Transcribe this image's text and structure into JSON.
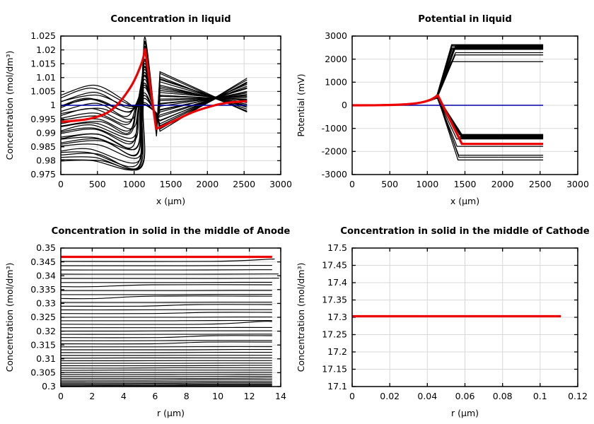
{
  "figure": {
    "background": "#ffffff",
    "colors": {
      "curve_black": "#000000",
      "highlight_red": "#ee0000",
      "reference_blue": "#0000a8",
      "grid": "#d8d8d8",
      "border": "#000000",
      "text": "#000000"
    }
  },
  "chart_data": [
    {
      "id": "concentration-liquid",
      "type": "line",
      "title": "Concentration in liquid",
      "xlabel": "x (µm)",
      "ylabel": "Concentration (mol/dm³)",
      "xlim": [
        0,
        3000
      ],
      "ylim": [
        0.975,
        1.025
      ],
      "grid": true,
      "legend": "none",
      "xticks": {
        "values": [
          0,
          500,
          1000,
          1500,
          2000,
          2500,
          3000
        ],
        "labels": [
          "0",
          "500",
          "1000",
          "1500",
          "2000",
          "2500",
          "3000"
        ]
      },
      "yticks": {
        "values": [
          0.975,
          0.98,
          0.985,
          0.99,
          0.995,
          1,
          1.005,
          1.01,
          1.015,
          1.02,
          1.025
        ],
        "labels": [
          "0.975",
          "0.98",
          "0.985",
          "0.99",
          "0.995",
          "1",
          "1.005",
          "1.01",
          "1.015",
          "1.02",
          "1.025"
        ]
      },
      "x_data_end": 2540,
      "series": {
        "black_curves": {
          "description": "liquid-phase concentration profiles at successive time steps",
          "count": 30,
          "start_range": [
            0.98,
            1.0035
          ],
          "dip": {
            "x_range": [
              840,
              1080
            ],
            "min": 0.9776
          },
          "peak": {
            "x": 1150,
            "range": [
              1.0,
              1.024
            ]
          },
          "valley": {
            "x": 1305,
            "range": [
              0.989,
              0.9975
            ]
          },
          "fan": {
            "x_start": 1352,
            "start_range": [
              0.9905,
              1.012
            ],
            "end_range": [
              0.9975,
              1.0095
            ]
          }
        },
        "red_highlight": {
          "segments": [
            [
              [
                0,
                0.994
              ],
              [
                400,
                0.9952
              ],
              [
                700,
                0.9985
              ],
              [
                950,
                1.0065
              ],
              [
                1100,
                1.015
              ],
              [
                1150,
                1.0205
              ]
            ],
            [
              [
                1300,
                0.9915
              ],
              [
                1500,
                0.9938
              ],
              [
                1800,
                0.9975
              ],
              [
                2100,
                1.0
              ],
              [
                2300,
                1.001
              ],
              [
                2540,
                1.0015
              ]
            ]
          ]
        },
        "blue_reference": {
          "y": 1.0,
          "x_range": [
            0,
            2540
          ]
        }
      },
      "generator": "liquidConc"
    },
    {
      "id": "potential-liquid",
      "type": "line",
      "title": "Potential in liquid",
      "xlabel": "x (µm)",
      "ylabel": "Potential (mV)",
      "xlim": [
        0,
        3000
      ],
      "ylim": [
        -3000,
        3000
      ],
      "grid": true,
      "legend": "none",
      "xticks": {
        "values": [
          0,
          500,
          1000,
          1500,
          2000,
          2500,
          3000
        ],
        "labels": [
          "0",
          "500",
          "1000",
          "1500",
          "2000",
          "2500",
          "3000"
        ]
      },
      "yticks": {
        "values": [
          -3000,
          -2000,
          -1000,
          0,
          1000,
          2000,
          3000
        ],
        "labels": [
          "-3000",
          "-2000",
          "-1000",
          "0",
          "1000",
          "2000",
          "3000"
        ]
      },
      "x_data_end": 2540,
      "series": {
        "black_curves": {
          "description": "liquid-phase potential profiles at successive time steps; flat at 0 then common bump near x=1150 before splitting to plateaus",
          "bump": {
            "x": 1130,
            "height_range": [
              300,
              480
            ]
          },
          "plateaus_up_bundle": [
            2420,
            2443,
            2466,
            2489,
            2512,
            2535,
            2558,
            2581,
            2604,
            2627
          ],
          "plateaus_up_single": [
            2280,
            2180,
            1890
          ],
          "plateaus_down_bundle": [
            -1260,
            -1282,
            -1304,
            -1326,
            -1348,
            -1370,
            -1392,
            -1414,
            -1436,
            -1458
          ],
          "plateaus_down_single": [
            -1780,
            -2160,
            -2250,
            -2370
          ]
        },
        "red_highlight": {
          "bump_points": [
            [
              0,
              0
            ],
            [
              350,
              5
            ],
            [
              650,
              30
            ],
            [
              880,
              100
            ],
            [
              1040,
              240
            ],
            [
              1140,
              430
            ]
          ],
          "plateau": -1670,
          "landing_x": 1460,
          "x_end": 2540
        },
        "blue_reference": {
          "y": 0,
          "x_range": [
            0,
            2540
          ]
        }
      },
      "generator": "liquidPot"
    },
    {
      "id": "concentration-solid-anode",
      "type": "line",
      "title": "Concentration in solid in the middle of Anode",
      "xlabel": "r (µm)",
      "ylabel": "Concentration (mol/dm³)",
      "xlim": [
        0,
        14
      ],
      "ylim": [
        0.3,
        0.35
      ],
      "grid": true,
      "legend": "none",
      "xticks": {
        "values": [
          0,
          2,
          4,
          6,
          8,
          10,
          12,
          14
        ],
        "labels": [
          "0",
          "2",
          "4",
          "6",
          "8",
          "10",
          "12",
          "14"
        ]
      },
      "yticks": {
        "values": [
          0.3,
          0.305,
          0.31,
          0.315,
          0.32,
          0.325,
          0.33,
          0.335,
          0.34,
          0.345,
          0.35
        ],
        "labels": [
          "0.3",
          "0.305",
          "0.31",
          "0.315",
          "0.32",
          "0.325",
          "0.33",
          "0.335",
          "0.34",
          "0.345",
          "0.35"
        ]
      },
      "x_data_end": 13.45,
      "series": {
        "black_lines": {
          "description": "solid-phase radial concentration profiles at successive times, nearly flat, densely packed toward 0.3",
          "count": 44,
          "y_min": 0.3,
          "y_max": 0.3452,
          "spacing_power": 1.5,
          "x_range": [
            0,
            13.45
          ]
        },
        "red_highlight": {
          "y": 0.3468,
          "x_range": [
            0,
            13.45
          ]
        }
      },
      "generator": "solidAnode"
    },
    {
      "id": "concentration-solid-cathode",
      "type": "line",
      "title": "Concentration in solid in the middle of Cathode",
      "xlabel": "r (µm)",
      "ylabel": "Concentration (mol/dm³)",
      "xlim": [
        0,
        0.12
      ],
      "ylim": [
        17.1,
        17.5
      ],
      "grid": true,
      "legend": "none",
      "xticks": {
        "values": [
          0,
          0.02,
          0.04,
          0.06,
          0.08,
          0.1,
          0.12
        ],
        "labels": [
          "0",
          "0.02",
          "0.04",
          "0.06",
          "0.08",
          "0.1",
          "0.12"
        ]
      },
      "yticks": {
        "values": [
          17.1,
          17.15,
          17.2,
          17.25,
          17.3,
          17.35,
          17.4,
          17.45,
          17.5
        ],
        "labels": [
          "17.1",
          "17.15",
          "17.2",
          "17.25",
          "17.3",
          "17.35",
          "17.4",
          "17.45",
          "17.5"
        ]
      },
      "x_data_end": 0.111,
      "series": {
        "red_highlight": {
          "y": 17.303,
          "x_range": [
            0,
            0.111
          ]
        }
      },
      "generator": "solidCathode"
    }
  ]
}
